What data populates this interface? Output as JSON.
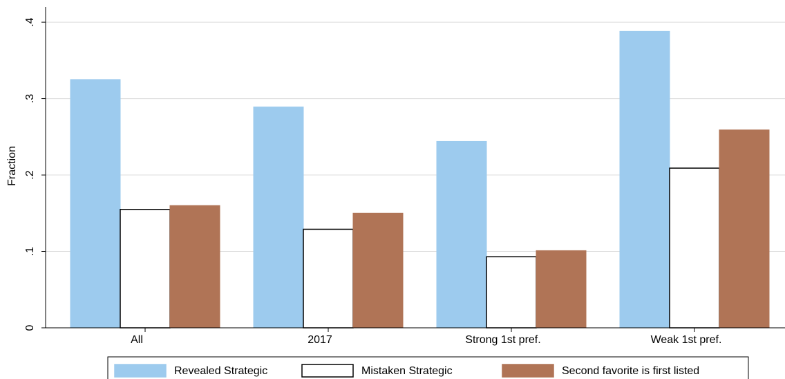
{
  "chart_data": {
    "type": "bar",
    "y_label": "Fraction",
    "categories": [
      "All",
      "2017",
      "Strong 1st pref.",
      "Weak 1st pref."
    ],
    "series": [
      {
        "name": "Revealed Strategic",
        "color": "#9dcbee",
        "values": [
          0.325,
          0.289,
          0.244,
          0.388
        ]
      },
      {
        "name": "Mistaken Strategic",
        "color": "#ffffff",
        "values": [
          0.155,
          0.129,
          0.093,
          0.209
        ]
      },
      {
        "name": "Second favorite is first listed",
        "color": "#b07456",
        "values": [
          0.16,
          0.15,
          0.101,
          0.259
        ]
      }
    ],
    "ylim": [
      0,
      0.42
    ],
    "yticks": [
      0,
      {
        "value": 0.1,
        "label": ".1"
      },
      {
        "value": 0.2,
        "label": ".2"
      },
      {
        "value": 0.3,
        "label": ".3"
      },
      {
        "value": 0.4,
        "label": ".4"
      }
    ],
    "grid": true
  }
}
